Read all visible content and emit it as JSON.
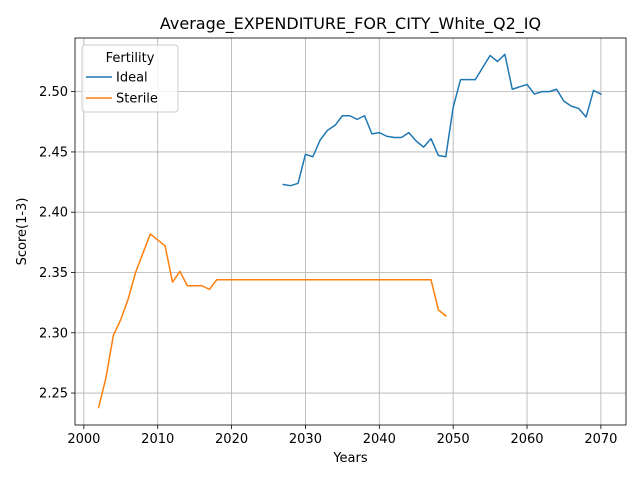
{
  "chart_data": {
    "type": "line",
    "title": "Average_EXPENDITURE_FOR_CITY_White_Q2_IQ",
    "xlabel": "Years",
    "ylabel": "Score(1-3)",
    "xlim": [
      1998.8,
      2073.4
    ],
    "ylim": [
      2.2235,
      2.5445
    ],
    "xticks": [
      2000,
      2010,
      2020,
      2030,
      2040,
      2050,
      2060,
      2070
    ],
    "yticks": [
      2.25,
      2.3,
      2.35,
      2.4,
      2.45,
      2.5
    ],
    "ytick_labels": [
      "2.25",
      "2.30",
      "2.35",
      "2.40",
      "2.45",
      "2.50"
    ],
    "grid": true,
    "legend": {
      "title": "Fertility",
      "placement": "top-left"
    },
    "series": [
      {
        "name": "Ideal",
        "color": "#1f77b4",
        "x": [
          2027,
          2028,
          2029,
          2030,
          2031,
          2032,
          2033,
          2034,
          2035,
          2036,
          2037,
          2038,
          2039,
          2040,
          2041,
          2042,
          2043,
          2044,
          2045,
          2046,
          2047,
          2048,
          2049,
          2050,
          2051,
          2052,
          2053,
          2054,
          2055,
          2056,
          2057,
          2058,
          2059,
          2060,
          2061,
          2062,
          2063,
          2064,
          2065,
          2066,
          2067,
          2068,
          2069,
          2070
        ],
        "y": [
          2.423,
          2.422,
          2.424,
          2.448,
          2.446,
          2.46,
          2.468,
          2.472,
          2.48,
          2.48,
          2.477,
          2.48,
          2.465,
          2.466,
          2.463,
          2.462,
          2.462,
          2.466,
          2.459,
          2.454,
          2.461,
          2.447,
          2.446,
          2.487,
          2.51,
          2.51,
          2.51,
          2.52,
          2.53,
          2.525,
          2.531,
          2.502,
          2.504,
          2.506,
          2.498,
          2.5,
          2.5,
          2.502,
          2.492,
          2.488,
          2.486,
          2.479,
          2.501,
          2.498
        ]
      },
      {
        "name": "Sterile",
        "color": "#ff7f0e",
        "x": [
          2002,
          2003,
          2004,
          2005,
          2006,
          2007,
          2008,
          2009,
          2010,
          2011,
          2012,
          2013,
          2014,
          2015,
          2016,
          2017,
          2018,
          2019,
          2020,
          2021,
          2022,
          2023,
          2024,
          2025,
          2026,
          2027,
          2028,
          2029,
          2030,
          2031,
          2032,
          2033,
          2034,
          2035,
          2036,
          2037,
          2038,
          2039,
          2040,
          2041,
          2042,
          2043,
          2044,
          2045,
          2046,
          2047,
          2048,
          2049
        ],
        "y": [
          2.238,
          2.263,
          2.298,
          2.311,
          2.328,
          2.35,
          2.366,
          2.382,
          2.377,
          2.372,
          2.342,
          2.351,
          2.339,
          2.339,
          2.339,
          2.336,
          2.344,
          2.344,
          2.344,
          2.344,
          2.344,
          2.344,
          2.344,
          2.344,
          2.344,
          2.344,
          2.344,
          2.344,
          2.344,
          2.344,
          2.344,
          2.344,
          2.344,
          2.344,
          2.344,
          2.344,
          2.344,
          2.344,
          2.344,
          2.344,
          2.344,
          2.344,
          2.344,
          2.344,
          2.344,
          2.344,
          2.319,
          2.314
        ]
      }
    ]
  }
}
